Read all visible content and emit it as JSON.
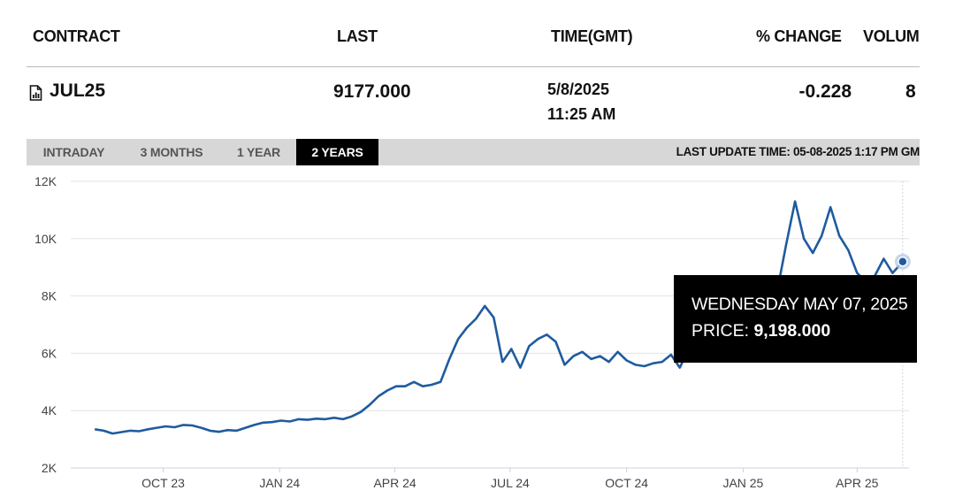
{
  "headers": {
    "contract": "CONTRACT",
    "last": "LAST",
    "time": "TIME(GMT)",
    "pct_change": "% CHANGE",
    "volume": "VOLUM"
  },
  "row": {
    "contract": "JUL25",
    "contract_icon": "document-chart-icon",
    "last": "9177.000",
    "date": "5/8/2025",
    "time": "11:25 AM",
    "pct_change": "-0.228",
    "volume": "8"
  },
  "tabs": [
    {
      "label": "INTRADAY",
      "active": false
    },
    {
      "label": "3 MONTHS",
      "active": false
    },
    {
      "label": "1 YEAR",
      "active": false
    },
    {
      "label": "2 YEARS",
      "active": true
    }
  ],
  "last_update": "LAST UPDATE TIME: 05-08-2025 1:17 PM GM",
  "tooltip": {
    "date": "WEDNESDAY MAY 07, 2025",
    "price_label": "PRICE:",
    "price_value": "9,198.000"
  },
  "colors": {
    "line": "#1f5b9e",
    "tab_bar": "#d7d7d7",
    "active_tab": "#000000",
    "tooltip_bg": "#000000"
  },
  "chart_data": {
    "type": "line",
    "title": "",
    "xlabel": "",
    "ylabel": "",
    "ylim": [
      2000,
      12000
    ],
    "y_ticks": [
      2000,
      4000,
      6000,
      8000,
      10000,
      12000
    ],
    "y_tick_labels": [
      "2K",
      "4K",
      "6K",
      "8K",
      "10K",
      "12K"
    ],
    "x_ticks": [
      {
        "label": "OCT 23",
        "date": "2023-10-01"
      },
      {
        "label": "JAN 24",
        "date": "2024-01-01"
      },
      {
        "label": "APR 24",
        "date": "2024-04-01"
      },
      {
        "label": "JUL 24",
        "date": "2024-07-01"
      },
      {
        "label": "OCT 24",
        "date": "2024-10-01"
      },
      {
        "label": "JAN 25",
        "date": "2025-01-01"
      },
      {
        "label": "APR 25",
        "date": "2025-04-01"
      }
    ],
    "grid": true,
    "series": [
      {
        "points": [
          [
            "2023-08-08",
            3350
          ],
          [
            "2023-08-15",
            3300
          ],
          [
            "2023-08-22",
            3200
          ],
          [
            "2023-08-29",
            3250
          ],
          [
            "2023-09-05",
            3300
          ],
          [
            "2023-09-12",
            3280
          ],
          [
            "2023-09-19",
            3350
          ],
          [
            "2023-09-26",
            3400
          ],
          [
            "2023-10-03",
            3450
          ],
          [
            "2023-10-10",
            3420
          ],
          [
            "2023-10-17",
            3500
          ],
          [
            "2023-10-24",
            3480
          ],
          [
            "2023-10-31",
            3400
          ],
          [
            "2023-11-07",
            3300
          ],
          [
            "2023-11-14",
            3260
          ],
          [
            "2023-11-21",
            3320
          ],
          [
            "2023-11-28",
            3300
          ],
          [
            "2023-12-05",
            3400
          ],
          [
            "2023-12-12",
            3500
          ],
          [
            "2023-12-19",
            3580
          ],
          [
            "2023-12-26",
            3600
          ],
          [
            "2024-01-02",
            3650
          ],
          [
            "2024-01-09",
            3620
          ],
          [
            "2024-01-16",
            3700
          ],
          [
            "2024-01-23",
            3680
          ],
          [
            "2024-01-30",
            3720
          ],
          [
            "2024-02-06",
            3700
          ],
          [
            "2024-02-13",
            3750
          ],
          [
            "2024-02-20",
            3700
          ],
          [
            "2024-02-27",
            3800
          ],
          [
            "2024-03-05",
            3950
          ],
          [
            "2024-03-12",
            4200
          ],
          [
            "2024-03-19",
            4500
          ],
          [
            "2024-03-26",
            4700
          ],
          [
            "2024-04-02",
            4850
          ],
          [
            "2024-04-09",
            4850
          ],
          [
            "2024-04-16",
            5000
          ],
          [
            "2024-04-23",
            4850
          ],
          [
            "2024-04-30",
            4900
          ],
          [
            "2024-05-07",
            5000
          ],
          [
            "2024-05-14",
            5800
          ],
          [
            "2024-05-21",
            6500
          ],
          [
            "2024-05-28",
            6900
          ],
          [
            "2024-06-04",
            7200
          ],
          [
            "2024-06-11",
            7650
          ],
          [
            "2024-06-18",
            7250
          ],
          [
            "2024-06-25",
            5700
          ],
          [
            "2024-07-02",
            6150
          ],
          [
            "2024-07-09",
            5500
          ],
          [
            "2024-07-16",
            6250
          ],
          [
            "2024-07-23",
            6500
          ],
          [
            "2024-07-30",
            6650
          ],
          [
            "2024-08-06",
            6400
          ],
          [
            "2024-08-13",
            5600
          ],
          [
            "2024-08-20",
            5900
          ],
          [
            "2024-08-27",
            6050
          ],
          [
            "2024-09-03",
            5800
          ],
          [
            "2024-09-10",
            5900
          ],
          [
            "2024-09-17",
            5700
          ],
          [
            "2024-09-24",
            6050
          ],
          [
            "2024-10-01",
            5750
          ],
          [
            "2024-10-08",
            5600
          ],
          [
            "2024-10-15",
            5550
          ],
          [
            "2024-10-22",
            5650
          ],
          [
            "2024-10-29",
            5700
          ],
          [
            "2024-11-05",
            5950
          ],
          [
            "2024-11-12",
            5500
          ],
          [
            "2024-11-19",
            6150
          ],
          [
            "2024-11-26",
            6400
          ],
          [
            "2024-12-03",
            6300
          ],
          [
            "2024-12-10",
            6100
          ],
          [
            "2024-12-17",
            6000
          ],
          [
            "2024-12-24",
            6450
          ],
          [
            "2024-12-31",
            6550
          ],
          [
            "2025-01-07",
            6600
          ],
          [
            "2025-01-14",
            6800
          ],
          [
            "2025-01-21",
            7300
          ],
          [
            "2025-01-28",
            8200
          ],
          [
            "2025-02-04",
            9800
          ],
          [
            "2025-02-11",
            11300
          ],
          [
            "2025-02-18",
            10000
          ],
          [
            "2025-02-25",
            9500
          ],
          [
            "2025-03-04",
            10100
          ],
          [
            "2025-03-11",
            11100
          ],
          [
            "2025-03-18",
            10100
          ],
          [
            "2025-03-25",
            9600
          ],
          [
            "2025-04-01",
            8800
          ],
          [
            "2025-04-08",
            8500
          ],
          [
            "2025-04-15",
            8700
          ],
          [
            "2025-04-22",
            9300
          ],
          [
            "2025-04-29",
            8800
          ],
          [
            "2025-05-07",
            9198
          ]
        ]
      }
    ],
    "highlight": {
      "date": "2025-05-07",
      "value": 9198
    }
  }
}
